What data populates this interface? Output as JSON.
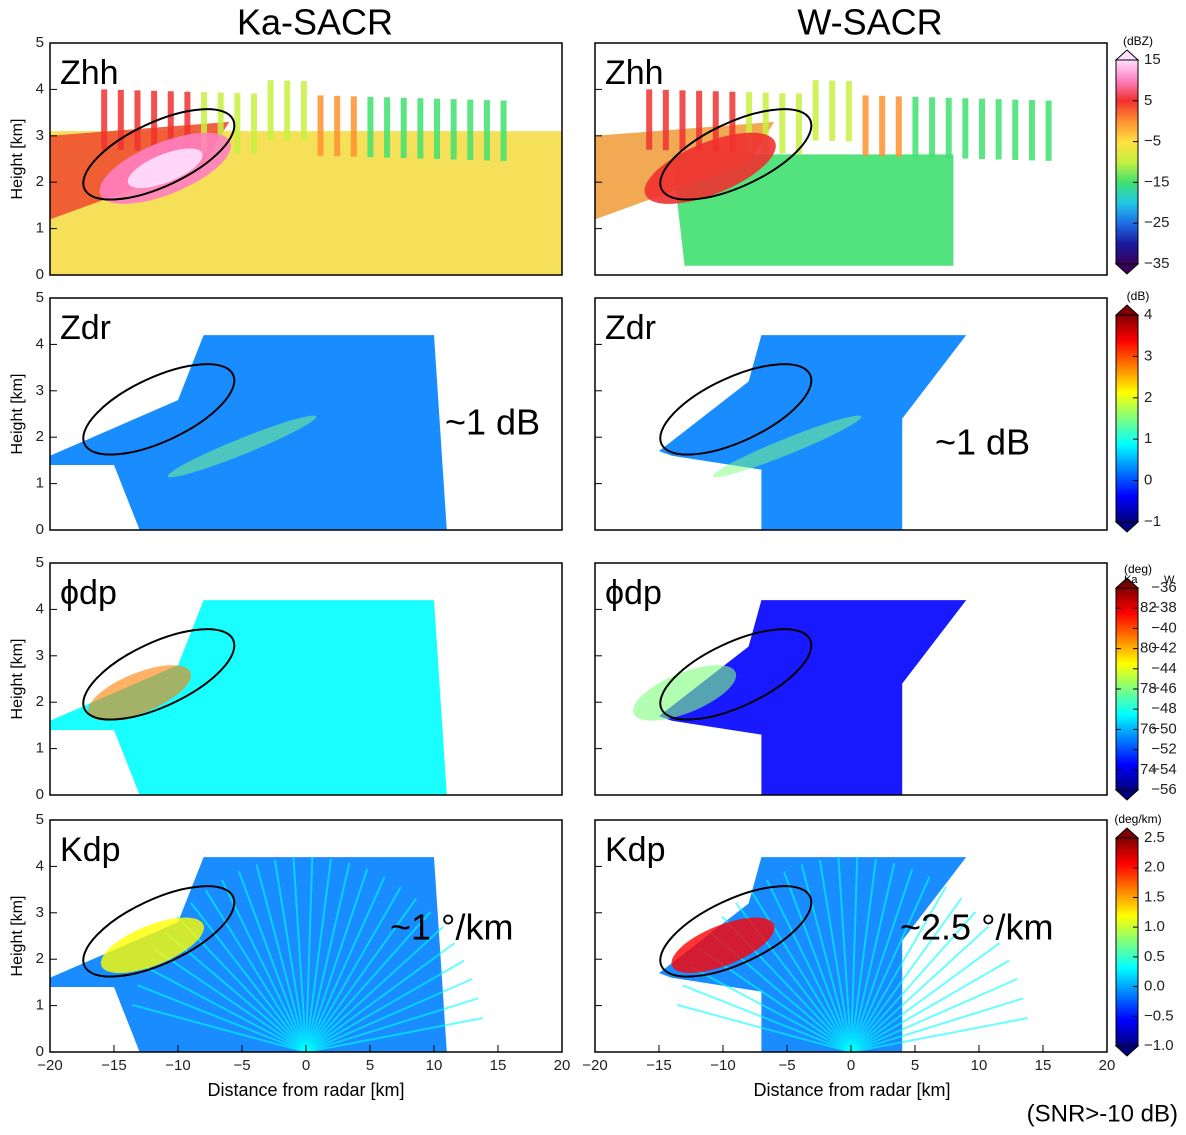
{
  "column_titles": [
    "Ka-SACR",
    "W-SACR"
  ],
  "x_label": "Distance from radar [km]",
  "y_label": "Height [km]",
  "footnote": "(SNR>-10 dB)",
  "chart_data": [
    {
      "type": "image",
      "label": "Zhh",
      "xlim": [
        -20,
        20
      ],
      "ylim": [
        0,
        5
      ],
      "yticks": [
        0,
        1,
        2,
        3,
        4,
        5
      ]
    },
    {
      "type": "image",
      "label": "Zhh",
      "xlim": [
        -20,
        20
      ],
      "ylim": [
        0,
        5
      ],
      "yticks": [
        0,
        1,
        2,
        3,
        4,
        5
      ]
    },
    {
      "type": "image",
      "label": "Zdr",
      "annotation": "~1 dB",
      "xlim": [
        -20,
        20
      ],
      "ylim": [
        0,
        5
      ],
      "yticks": [
        0,
        1,
        2,
        3,
        4,
        5
      ]
    },
    {
      "type": "image",
      "label": "Zdr",
      "annotation": "~1 dB",
      "xlim": [
        -20,
        20
      ],
      "ylim": [
        0,
        5
      ],
      "yticks": [
        0,
        1,
        2,
        3,
        4,
        5
      ]
    },
    {
      "type": "image",
      "label": "ϕdp",
      "xlim": [
        -20,
        20
      ],
      "ylim": [
        0,
        5
      ],
      "yticks": [
        0,
        1,
        2,
        3,
        4,
        5
      ]
    },
    {
      "type": "image",
      "label": "ϕdp",
      "xlim": [
        -20,
        20
      ],
      "ylim": [
        0,
        5
      ],
      "yticks": [
        0,
        1,
        2,
        3,
        4,
        5
      ]
    },
    {
      "type": "image",
      "label": "Kdp",
      "annotation": "~1 °/km",
      "xlim": [
        -20,
        20
      ],
      "ylim": [
        0,
        5
      ],
      "yticks": [
        0,
        1,
        2,
        3,
        4,
        5
      ],
      "xticks": [
        {
          "value": -20,
          "label": "−20"
        },
        {
          "value": -15,
          "label": "−15"
        },
        {
          "value": -10,
          "label": "−10"
        },
        {
          "value": -5,
          "label": "−5"
        },
        0,
        5,
        10,
        15,
        20
      ]
    },
    {
      "type": "image",
      "label": "Kdp",
      "annotation": "~2.5 °/km",
      "xlim": [
        -20,
        20
      ],
      "ylim": [
        0,
        5
      ],
      "yticks": [
        0,
        1,
        2,
        3,
        4,
        5
      ],
      "xticks": [
        {
          "value": -20,
          "label": "−20"
        },
        {
          "value": -15,
          "label": "−15"
        },
        {
          "value": -10,
          "label": "−10"
        },
        {
          "value": -5,
          "label": "−5"
        },
        0,
        5,
        10,
        15,
        20
      ]
    }
  ],
  "colorbars": [
    {
      "unit": "(dBZ)",
      "lim": [
        -35,
        15
      ],
      "colors": [
        "#3a005a",
        "#1a1aa0",
        "#1e6ee6",
        "#20c8e6",
        "#40e070",
        "#c8f040",
        "#ffe040",
        "#ff9030",
        "#f03030",
        "#ff80c0",
        "#ffe0ff"
      ],
      "ticks": [
        15,
        5,
        {
          "value": -5,
          "label": "−5"
        },
        {
          "value": -15,
          "label": "−15"
        },
        {
          "value": -25,
          "label": "−25"
        },
        {
          "value": -35,
          "label": "−35"
        }
      ]
    },
    {
      "unit": "(dB)",
      "lim": [
        -1,
        4
      ],
      "colors": [
        "#00007f",
        "#0000ff",
        "#007fff",
        "#00ffff",
        "#7fff7f",
        "#ffff00",
        "#ff7f00",
        "#ff0000",
        "#7f0000"
      ],
      "ticks": [
        4,
        3,
        2,
        1,
        0,
        {
          "value": -1,
          "label": "−1"
        }
      ]
    },
    {
      "unit": "(deg)",
      "sub_labels": [
        "Ka",
        "W"
      ],
      "lim": [
        -56,
        -36
      ],
      "ka_lim": [
        73,
        83
      ],
      "colors": [
        "#00007f",
        "#0000ff",
        "#007fff",
        "#00ffff",
        "#7fff7f",
        "#ffff00",
        "#ff7f00",
        "#ff0000",
        "#7f0000"
      ],
      "ticks": [
        {
          "value": -36,
          "label": "−36"
        },
        {
          "value": -38,
          "label": "−38"
        },
        {
          "value": -40,
          "label": "−40"
        },
        {
          "value": -42,
          "label": "−42"
        },
        {
          "value": -44,
          "label": "−44"
        },
        {
          "value": -46,
          "label": "−46"
        },
        {
          "value": -48,
          "label": "−48"
        },
        {
          "value": -50,
          "label": "−50"
        },
        {
          "value": -52,
          "label": "−52"
        },
        {
          "value": -54,
          "label": "−54"
        },
        {
          "value": -56,
          "label": "−56"
        }
      ],
      "ka_ticks": [
        82,
        80,
        78,
        76,
        74
      ]
    },
    {
      "unit": "(deg/km)",
      "lim": [
        -1,
        2.5
      ],
      "colors": [
        "#00007f",
        "#0000ff",
        "#007fff",
        "#00ffff",
        "#7fff7f",
        "#ffff00",
        "#ff7f00",
        "#ff0000",
        "#7f0000"
      ],
      "ticks": [
        2.5,
        {
          "value": 2,
          "label": "2.0"
        },
        1.5,
        {
          "value": 1,
          "label": "1.0"
        },
        0.5,
        {
          "value": 0,
          "label": "0.0"
        },
        {
          "value": -0.5,
          "label": "−0.5"
        },
        {
          "value": -1,
          "label": "−1.0"
        }
      ]
    }
  ]
}
